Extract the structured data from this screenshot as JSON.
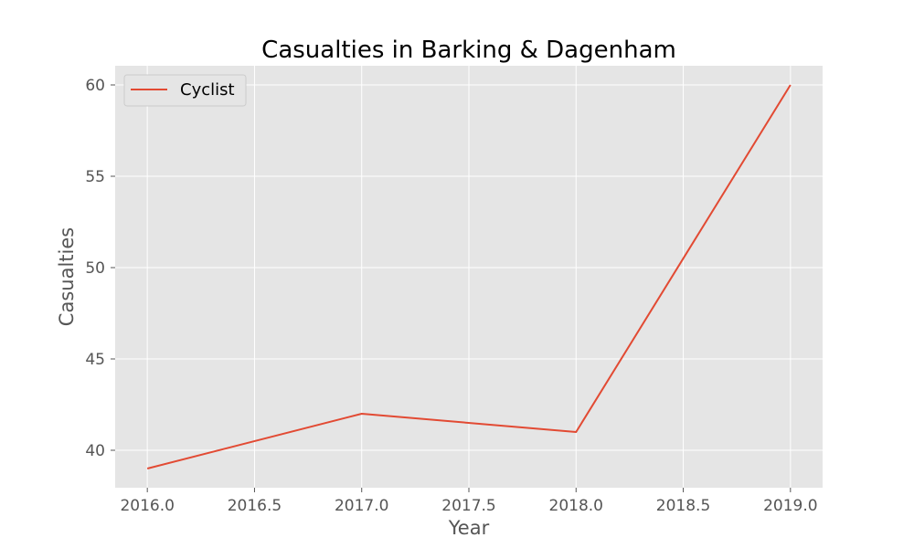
{
  "chart_data": {
    "type": "line",
    "title": "Casualties in Barking & Dagenham",
    "xlabel": "Year",
    "ylabel": "Casualties",
    "x": [
      2016,
      2017,
      2018,
      2019
    ],
    "series": [
      {
        "name": "Cyclist",
        "values": [
          39,
          42,
          41,
          60
        ],
        "color": "#e24a33"
      }
    ],
    "xlim": [
      2015.85,
      2019.15
    ],
    "ylim": [
      37.95,
      61.05
    ],
    "xticks": [
      2016.0,
      2016.5,
      2017.0,
      2017.5,
      2018.0,
      2018.5,
      2019.0
    ],
    "xtick_labels": [
      "2016.0",
      "2016.5",
      "2017.0",
      "2017.5",
      "2018.0",
      "2018.5",
      "2019.0"
    ],
    "yticks": [
      40,
      45,
      50,
      55,
      60
    ],
    "ytick_labels": [
      "40",
      "45",
      "50",
      "55",
      "60"
    ],
    "grid": true,
    "legend_position": "top-left",
    "colors": {
      "plot_background": "#e5e5e5",
      "grid": "#ffffff",
      "text": "#555555"
    }
  }
}
